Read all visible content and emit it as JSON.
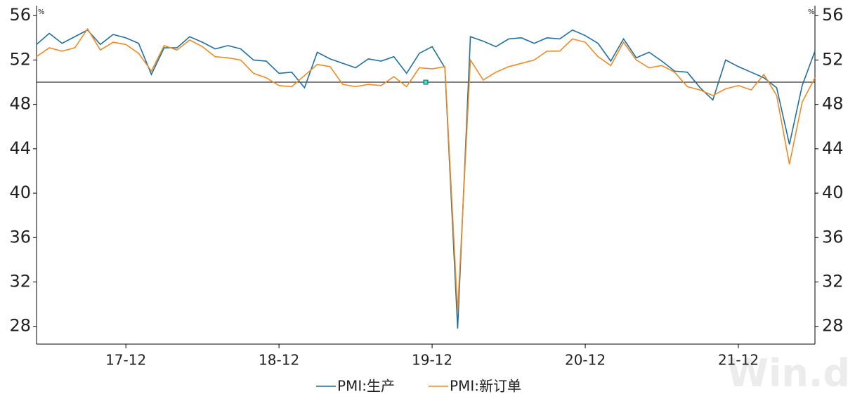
{
  "chart_data": {
    "type": "line",
    "categories": [
      null,
      null,
      null,
      null,
      null,
      null,
      null,
      "17-12",
      null,
      null,
      null,
      null,
      null,
      null,
      null,
      null,
      null,
      null,
      null,
      "18-12",
      null,
      null,
      null,
      null,
      null,
      null,
      null,
      null,
      null,
      null,
      null,
      "19-12",
      null,
      null,
      null,
      null,
      null,
      null,
      null,
      null,
      null,
      null,
      null,
      "20-12",
      null,
      null,
      null,
      null,
      null,
      null,
      null,
      null,
      null,
      null,
      null,
      "21-12",
      null,
      null,
      null,
      null,
      null,
      null
    ],
    "series": [
      {
        "name": "PMI:生产",
        "color": "#1f6f9f",
        "values": [
          53.4,
          54.4,
          53.5,
          54.1,
          54.7,
          53.4,
          54.3,
          54.0,
          53.5,
          50.7,
          53.1,
          53.1,
          54.1,
          53.6,
          53.0,
          53.3,
          53.0,
          52.0,
          51.9,
          50.8,
          50.9,
          49.5,
          52.7,
          52.1,
          51.7,
          51.3,
          52.1,
          51.9,
          52.3,
          50.8,
          52.6,
          53.2,
          51.3,
          27.8,
          54.1,
          53.7,
          53.2,
          53.9,
          54.0,
          53.5,
          54.0,
          53.9,
          54.7,
          54.2,
          53.5,
          51.9,
          53.9,
          52.2,
          52.7,
          51.9,
          51.0,
          50.9,
          49.5,
          48.4,
          52.0,
          51.4,
          50.9,
          50.4,
          49.5,
          44.4,
          49.7,
          52.8
        ]
      },
      {
        "name": "PMI:新订单",
        "color": "#f08a24",
        "values": [
          52.3,
          53.1,
          52.8,
          53.1,
          54.8,
          52.9,
          53.6,
          53.4,
          52.6,
          51.0,
          53.3,
          52.9,
          53.8,
          53.2,
          52.3,
          52.2,
          52.0,
          50.8,
          50.4,
          49.7,
          49.6,
          50.6,
          51.6,
          51.4,
          49.8,
          49.6,
          49.8,
          49.7,
          50.5,
          49.6,
          51.3,
          51.2,
          51.4,
          29.3,
          52.0,
          50.2,
          50.9,
          51.4,
          51.7,
          52.0,
          52.8,
          52.8,
          53.9,
          53.6,
          52.3,
          51.5,
          53.6,
          52.0,
          51.3,
          51.5,
          50.9,
          49.6,
          49.3,
          48.8,
          49.4,
          49.7,
          49.3,
          50.7,
          48.8,
          42.6,
          48.2,
          50.4
        ]
      }
    ],
    "ylim": [
      26.4,
      56.9
    ],
    "yticks": [
      28,
      32,
      36,
      40,
      44,
      48,
      52,
      56
    ],
    "y2lim": [
      26.4,
      56.9
    ],
    "y2ticks": [
      28,
      32,
      36,
      40,
      44,
      48,
      52,
      56
    ],
    "y_unit": "%",
    "y2_unit": "%",
    "reference_line": 50,
    "watermark": "Win.d"
  }
}
